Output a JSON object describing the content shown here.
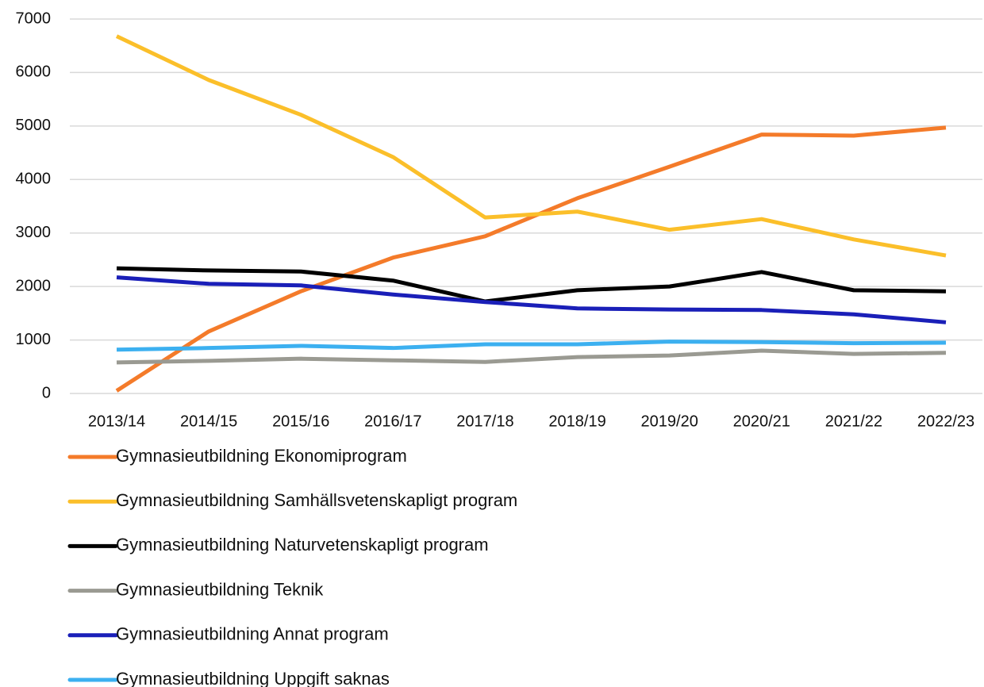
{
  "chart_data": {
    "type": "line",
    "categories": [
      "2013/14",
      "2014/15",
      "2015/16",
      "2016/17",
      "2017/18",
      "2018/19",
      "2019/20",
      "2020/21",
      "2021/22",
      "2022/23"
    ],
    "series": [
      {
        "name": "Gymnasieutbildning Ekonomiprogram",
        "color": "#f47b2a",
        "values": [
          50,
          1160,
          1910,
          2540,
          2940,
          3650,
          4240,
          4840,
          4820,
          4970
        ]
      },
      {
        "name": "Gymnasieutbildning Samhällsvetenskapligt program",
        "color": "#fbbf2a",
        "values": [
          6680,
          5860,
          5210,
          4420,
          3290,
          3400,
          3060,
          3260,
          2880,
          2580
        ]
      },
      {
        "name": "Gymnasieutbildning Naturvetenskapligt program",
        "color": "#000000",
        "values": [
          2340,
          2300,
          2280,
          2110,
          1720,
          1930,
          2000,
          2270,
          1930,
          1910
        ]
      },
      {
        "name": "Gymnasieutbildning Teknik",
        "color": "#9a9a92",
        "values": [
          580,
          610,
          650,
          620,
          590,
          680,
          710,
          800,
          740,
          760
        ]
      },
      {
        "name": "Gymnasieutbildning Annat program",
        "color": "#1a1fb8",
        "values": [
          2170,
          2050,
          2020,
          1850,
          1710,
          1590,
          1570,
          1560,
          1480,
          1330
        ]
      },
      {
        "name": "Gymnasieutbildning Uppgift saknas",
        "color": "#3cb0f0",
        "values": [
          820,
          850,
          890,
          850,
          920,
          920,
          970,
          960,
          940,
          950
        ]
      }
    ],
    "ylim": [
      0,
      7000
    ],
    "yticks": [
      0,
      1000,
      2000,
      3000,
      4000,
      5000,
      6000,
      7000
    ],
    "grid": true,
    "legend": "bottom"
  }
}
